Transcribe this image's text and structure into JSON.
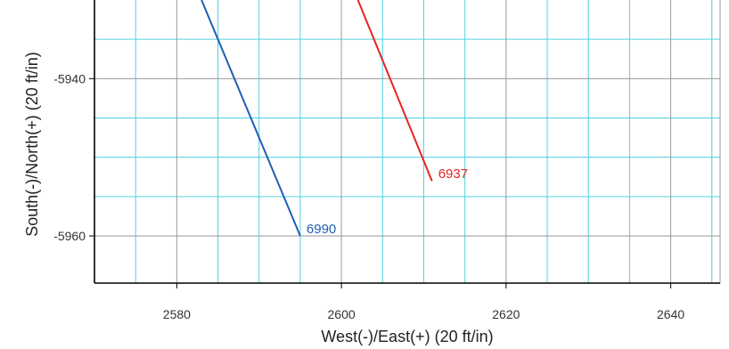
{
  "chart_data": {
    "type": "line",
    "title": "",
    "xlabel": "West(-)/East(+) (20 ft/in)",
    "ylabel": "South(-)/North(+) (20 ft/in)",
    "xlim": [
      2570,
      2646
    ],
    "ylim": [
      -5966,
      -5930
    ],
    "x_ticks": [
      2580,
      2600,
      2620,
      2640
    ],
    "y_ticks": [
      -5940,
      -5960
    ],
    "x_gridlines": [
      2575,
      2580,
      2585,
      2590,
      2595,
      2600,
      2605,
      2610,
      2615,
      2620,
      2625,
      2630,
      2635,
      2640,
      2645
    ],
    "y_gridlines": [
      -5935,
      -5940,
      -5945,
      -5950,
      -5955,
      -5960
    ],
    "grid": true,
    "colors": {
      "grid_major": "#9a9a9a",
      "grid_minor": "#4dd2e0",
      "frame": "#000000"
    },
    "series": [
      {
        "label": "6990",
        "color": "#1f5fb4",
        "x": [
          2583,
          2595
        ],
        "y": [
          -5930,
          -5960
        ]
      },
      {
        "label": "6937",
        "color": "#e52521",
        "x": [
          2602,
          2611
        ],
        "y": [
          -5930,
          -5953
        ]
      }
    ]
  }
}
